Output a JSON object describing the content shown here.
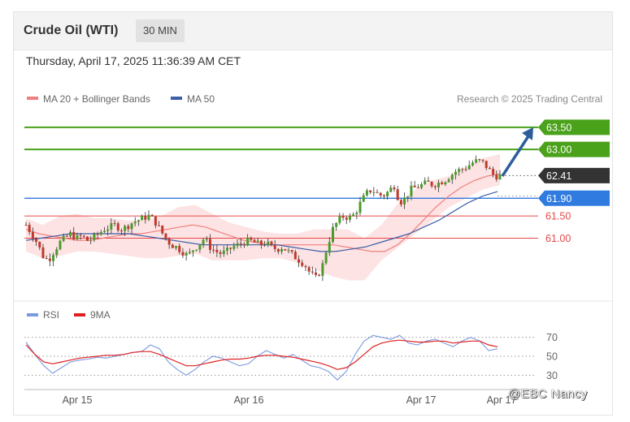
{
  "header": {
    "title": "Crude Oil (WTI)",
    "timeframe": "30 MIN",
    "datetime": "Thursday, April 17, 2025 11:36:39 AM CET"
  },
  "watermark": "@EBC  Nancy",
  "colors": {
    "resistance": "#4aa11a",
    "support": "#e84848",
    "pivot": "#2f7be0",
    "current": "#333333",
    "ma20": "#f08080",
    "ma50": "#3b5fa8",
    "bollinger_fill": "#fde0e0",
    "candle_up": "#4a9c2a",
    "candle_down": "#c0392b",
    "rsi": "#7a9ae0",
    "rsi_ma": "#e02020",
    "arrow": "#2c5d99"
  },
  "chart_data": [
    {
      "type": "candlestick",
      "title": "",
      "legend": [
        {
          "name": "MA 20 + Bollinger Bands",
          "color": "#f08080"
        },
        {
          "name": "MA 50",
          "color": "#3b5fa8"
        }
      ],
      "legend_position": "top-left",
      "credit": "Research © 2025 Trading Central",
      "x_ticks": [
        "Apr 15",
        "Apr 16",
        "Apr 17",
        "Apr 17"
      ],
      "ylim": [
        59.6,
        63.9
      ],
      "levels": [
        {
          "value": 63.5,
          "label": "63.50",
          "kind": "resistance"
        },
        {
          "value": 63.0,
          "label": "63.00",
          "kind": "resistance"
        },
        {
          "value": 62.41,
          "label": "62.41",
          "kind": "current"
        },
        {
          "value": 61.9,
          "label": "61.90",
          "kind": "pivot"
        },
        {
          "value": 61.5,
          "label": "61.50",
          "kind": "support"
        },
        {
          "value": 61.0,
          "label": "61.00",
          "kind": "support"
        }
      ],
      "target_arrow": {
        "from": 62.4,
        "to": 63.5
      },
      "close_series": [
        61.3,
        61.1,
        60.9,
        60.6,
        60.5,
        60.7,
        60.9,
        61.0,
        61.1,
        61.0,
        61.05,
        60.95,
        61.0,
        61.1,
        61.2,
        61.25,
        61.3,
        61.2,
        61.25,
        61.35,
        61.4,
        61.45,
        61.5,
        61.4,
        61.2,
        61.0,
        60.85,
        60.8,
        60.7,
        60.6,
        60.75,
        60.85,
        61.0,
        60.8,
        60.7,
        60.65,
        60.7,
        60.8,
        60.85,
        60.9,
        60.95,
        60.9,
        60.85,
        60.9,
        60.8,
        60.75,
        60.8,
        60.7,
        60.6,
        60.5,
        60.4,
        60.2,
        60.1,
        60.3,
        60.8,
        61.2,
        61.4,
        61.5,
        61.45,
        61.55,
        61.8,
        62.0,
        62.1,
        62.0,
        61.95,
        62.05,
        62.2,
        61.8,
        61.9,
        62.1,
        62.15,
        62.2,
        62.25,
        62.2,
        62.25,
        62.3,
        62.4,
        62.5,
        62.55,
        62.6,
        62.7,
        62.75,
        62.7,
        62.55,
        62.4,
        62.41
      ],
      "ma20_series": [
        61.2,
        61.1,
        61.05,
        61.0,
        60.95,
        60.95,
        61.0,
        61.05,
        61.1,
        61.1,
        61.15,
        61.2,
        61.25,
        61.3,
        61.25,
        61.15,
        61.05,
        60.95,
        60.9,
        60.85,
        60.85,
        60.85,
        60.85,
        60.85,
        60.85,
        60.8,
        60.75,
        60.7,
        60.7,
        60.85,
        61.1,
        61.4,
        61.7,
        61.95,
        62.15,
        62.3,
        62.4,
        62.45
      ],
      "ma50_series": [
        60.95,
        61.0,
        61.05,
        61.1,
        61.1,
        61.1,
        61.1,
        61.1,
        61.05,
        61.0,
        60.95,
        60.9,
        60.85,
        60.85,
        60.85,
        60.85,
        60.85,
        60.85,
        60.8,
        60.75,
        60.7,
        60.7,
        60.75,
        60.8,
        60.9,
        61.0,
        61.1,
        61.25,
        61.4,
        61.6,
        61.8,
        61.95,
        62.05
      ],
      "bollinger_upper_series": [
        61.45,
        61.3,
        61.5,
        61.55,
        61.45,
        61.45,
        61.4,
        61.4,
        61.5,
        61.7,
        61.75,
        61.55,
        61.35,
        61.25,
        61.15,
        61.1,
        61.1,
        61.2,
        61.2,
        61.2,
        61.0,
        61.3,
        61.8,
        62.1,
        62.3,
        62.4,
        62.6,
        62.8,
        62.9
      ],
      "bollinger_lower_series": [
        60.7,
        60.55,
        60.6,
        60.7,
        60.7,
        60.65,
        60.6,
        60.55,
        60.55,
        60.6,
        60.65,
        60.5,
        60.5,
        60.5,
        60.55,
        60.55,
        60.45,
        60.3,
        60.15,
        60.05,
        60.05,
        60.5,
        60.8,
        61.1,
        61.4,
        61.7,
        61.9,
        62.1,
        62.2
      ]
    },
    {
      "type": "line",
      "title": "",
      "legend": [
        {
          "name": "RSI",
          "color": "#7a9ae0"
        },
        {
          "name": "9MA",
          "color": "#e02020"
        }
      ],
      "y_ticks": [
        "70",
        "50",
        "30"
      ],
      "ylim": [
        20,
        80
      ],
      "series": [
        {
          "name": "RSI",
          "values": [
            65,
            52,
            40,
            32,
            38,
            44,
            46,
            47,
            49,
            48,
            50,
            52,
            54,
            55,
            62,
            58,
            44,
            36,
            30,
            36,
            44,
            50,
            48,
            44,
            40,
            42,
            50,
            56,
            52,
            48,
            52,
            46,
            40,
            38,
            34,
            25,
            34,
            52,
            66,
            72,
            70,
            68,
            72,
            64,
            62,
            66,
            68,
            64,
            60,
            66,
            70,
            66,
            56,
            58
          ]
        },
        {
          "name": "9MA",
          "values": [
            62,
            52,
            44,
            42,
            44,
            46,
            48,
            49,
            50,
            51,
            51,
            52,
            54,
            55,
            55,
            52,
            48,
            44,
            40,
            40,
            42,
            44,
            46,
            47,
            47,
            48,
            50,
            51,
            51,
            50,
            49,
            47,
            45,
            43,
            40,
            36,
            38,
            44,
            52,
            60,
            64,
            66,
            67,
            66,
            65,
            65,
            66,
            66,
            64,
            65,
            66,
            66,
            62,
            60
          ]
        }
      ]
    }
  ]
}
